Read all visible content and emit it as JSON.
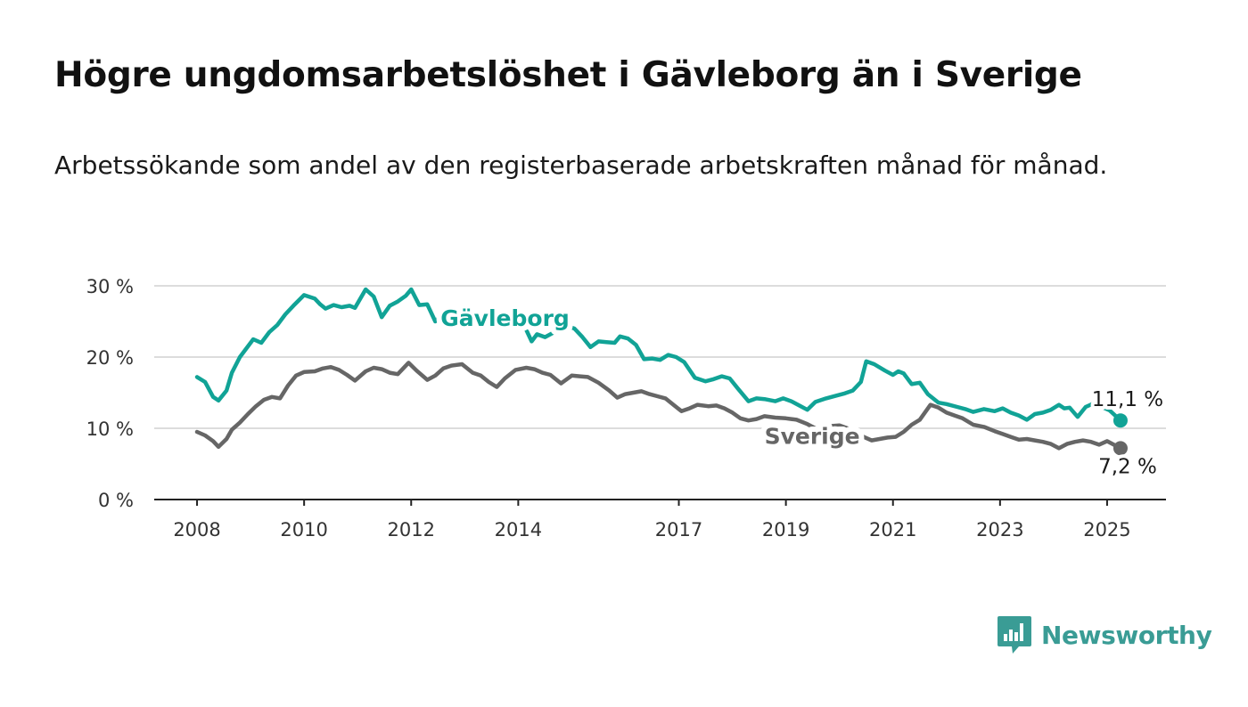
{
  "header": {
    "title": "Högre ungdomsarbetslöshet i Gävleborg än i Sverige",
    "subtitle": "Arbetssökande som andel av den registerbaserade arbetskraften månad för månad."
  },
  "branding": {
    "name": "Newsworthy",
    "icon": "bar-chart-speech-bubble-icon",
    "color": "#3a9c95"
  },
  "chart_data": {
    "type": "line",
    "title": "Högre ungdomsarbetslöshet i Gävleborg än i Sverige",
    "xlabel": "",
    "ylabel": "",
    "ylim": [
      0,
      30
    ],
    "xlim": [
      2007.2,
      2026.1
    ],
    "y_ticks": [
      {
        "value": 0,
        "label": "0 %"
      },
      {
        "value": 10,
        "label": "10 %"
      },
      {
        "value": 20,
        "label": "20 %"
      },
      {
        "value": 30,
        "label": "30 %"
      }
    ],
    "x_ticks": [
      {
        "value": 2008,
        "label": "2008"
      },
      {
        "value": 2010,
        "label": "2010"
      },
      {
        "value": 2012,
        "label": "2012"
      },
      {
        "value": 2014,
        "label": "2014"
      },
      {
        "value": 2017,
        "label": "2017"
      },
      {
        "value": 2019,
        "label": "2019"
      },
      {
        "value": 2021,
        "label": "2021"
      },
      {
        "value": 2023,
        "label": "2023"
      },
      {
        "value": 2025,
        "label": "2025"
      }
    ],
    "grid": true,
    "series": [
      {
        "name": "Gävleborg",
        "color": "#11a396",
        "end_label": "11,1 %",
        "x": [
          2008.0,
          2008.15,
          2008.3,
          2008.4,
          2008.55,
          2008.65,
          2008.8,
          2008.9,
          2009.05,
          2009.2,
          2009.35,
          2009.5,
          2009.65,
          2009.8,
          2010.0,
          2010.2,
          2010.3,
          2010.4,
          2010.55,
          2010.7,
          2010.85,
          2010.95,
          2011.15,
          2011.3,
          2011.45,
          2011.6,
          2011.75,
          2011.9,
          2012.0,
          2012.15,
          2012.3,
          2012.45,
          2012.6,
          2012.8,
          2013.0,
          2013.2,
          2013.45,
          2013.6,
          2013.75,
          2013.9,
          2014.1,
          2014.25,
          2014.35,
          2014.5,
          2014.7,
          2014.9,
          2015.05,
          2015.2,
          2015.35,
          2015.5,
          2015.65,
          2015.8,
          2015.9,
          2016.05,
          2016.2,
          2016.35,
          2016.5,
          2016.65,
          2016.8,
          2016.95,
          2017.1,
          2017.3,
          2017.5,
          2017.65,
          2017.8,
          2017.95,
          2018.1,
          2018.3,
          2018.45,
          2018.6,
          2018.8,
          2018.95,
          2019.1,
          2019.25,
          2019.4,
          2019.55,
          2019.75,
          2019.95,
          2020.1,
          2020.25,
          2020.4,
          2020.5,
          2020.65,
          2020.85,
          2021.0,
          2021.1,
          2021.2,
          2021.35,
          2021.5,
          2021.65,
          2021.85,
          2022.0,
          2022.2,
          2022.35,
          2022.5,
          2022.7,
          2022.9,
          2023.05,
          2023.2,
          2023.35,
          2023.5,
          2023.65,
          2023.8,
          2023.95,
          2024.1,
          2024.2,
          2024.3,
          2024.45,
          2024.6,
          2024.75,
          2024.9,
          2025.05,
          2025.25
        ],
        "y": [
          17.2,
          16.5,
          14.4,
          13.9,
          15.3,
          17.8,
          20.0,
          21.0,
          22.5,
          22.0,
          23.5,
          24.5,
          26.0,
          27.2,
          28.7,
          28.2,
          27.4,
          26.8,
          27.3,
          27.0,
          27.2,
          26.9,
          29.5,
          28.5,
          25.6,
          27.2,
          27.8,
          28.6,
          29.5,
          27.3,
          27.4,
          25.0,
          26.2,
          26.0,
          25.8,
          25.3,
          24.3,
          25.8,
          25.3,
          25.0,
          24.6,
          22.2,
          23.2,
          22.8,
          23.6,
          24.4,
          24.0,
          22.8,
          21.4,
          22.2,
          22.1,
          22.0,
          22.9,
          22.6,
          21.7,
          19.7,
          19.8,
          19.6,
          20.3,
          20.0,
          19.3,
          17.1,
          16.6,
          16.9,
          17.3,
          17.0,
          15.6,
          13.8,
          14.2,
          14.1,
          13.8,
          14.2,
          13.8,
          13.2,
          12.6,
          13.7,
          14.2,
          14.6,
          14.9,
          15.3,
          16.5,
          19.4,
          19.0,
          18.1,
          17.5,
          18.0,
          17.7,
          16.2,
          16.4,
          14.8,
          13.6,
          13.4,
          13.0,
          12.7,
          12.3,
          12.7,
          12.4,
          12.8,
          12.2,
          11.8,
          11.2,
          12.0,
          12.2,
          12.6,
          13.3,
          12.8,
          12.9,
          11.6,
          13.0,
          13.5,
          13.0,
          12.5,
          11.1
        ]
      },
      {
        "name": "Sverige",
        "color": "#666666",
        "end_label": "7,2 %",
        "x": [
          2008.0,
          2008.15,
          2008.3,
          2008.4,
          2008.55,
          2008.65,
          2008.8,
          2008.95,
          2009.1,
          2009.25,
          2009.4,
          2009.55,
          2009.7,
          2009.85,
          2010.0,
          2010.2,
          2010.35,
          2010.5,
          2010.65,
          2010.8,
          2010.95,
          2011.15,
          2011.3,
          2011.45,
          2011.6,
          2011.75,
          2011.95,
          2012.1,
          2012.3,
          2012.45,
          2012.6,
          2012.75,
          2012.95,
          2013.15,
          2013.3,
          2013.45,
          2013.6,
          2013.75,
          2013.95,
          2014.15,
          2014.3,
          2014.45,
          2014.6,
          2014.8,
          2015.0,
          2015.15,
          2015.3,
          2015.5,
          2015.7,
          2015.85,
          2016.0,
          2016.15,
          2016.3,
          2016.45,
          2016.6,
          2016.75,
          2016.9,
          2017.05,
          2017.2,
          2017.35,
          2017.55,
          2017.7,
          2017.85,
          2018.0,
          2018.15,
          2018.3,
          2018.45,
          2018.6,
          2018.8,
          2019.0,
          2019.2,
          2019.4,
          2019.6,
          2019.8,
          2020.0,
          2020.15,
          2020.3,
          2020.45,
          2020.6,
          2020.75,
          2020.9,
          2021.05,
          2021.2,
          2021.35,
          2021.5,
          2021.7,
          2021.85,
          2022.0,
          2022.15,
          2022.3,
          2022.5,
          2022.7,
          2022.9,
          2023.05,
          2023.2,
          2023.35,
          2023.5,
          2023.65,
          2023.8,
          2023.95,
          2024.1,
          2024.25,
          2024.4,
          2024.55,
          2024.7,
          2024.85,
          2025.0,
          2025.25
        ],
        "y": [
          9.5,
          9.0,
          8.2,
          7.4,
          8.5,
          9.8,
          10.8,
          12.0,
          13.1,
          14.0,
          14.4,
          14.2,
          16.0,
          17.4,
          17.9,
          18.0,
          18.4,
          18.6,
          18.2,
          17.5,
          16.7,
          18.0,
          18.5,
          18.3,
          17.8,
          17.6,
          19.2,
          18.1,
          16.8,
          17.4,
          18.4,
          18.8,
          19.0,
          17.8,
          17.4,
          16.5,
          15.8,
          17.0,
          18.2,
          18.5,
          18.3,
          17.8,
          17.5,
          16.3,
          17.4,
          17.3,
          17.2,
          16.4,
          15.3,
          14.3,
          14.8,
          15.0,
          15.2,
          14.8,
          14.5,
          14.2,
          13.3,
          12.4,
          12.8,
          13.3,
          13.1,
          13.2,
          12.8,
          12.2,
          11.4,
          11.1,
          11.3,
          11.7,
          11.5,
          11.4,
          11.2,
          10.6,
          9.8,
          10.3,
          10.4,
          10.0,
          9.4,
          8.8,
          8.3,
          8.5,
          8.7,
          8.8,
          9.5,
          10.5,
          11.2,
          13.3,
          12.9,
          12.2,
          11.8,
          11.4,
          10.5,
          10.2,
          9.6,
          9.2,
          8.8,
          8.4,
          8.5,
          8.3,
          8.1,
          7.8,
          7.2,
          7.8,
          8.1,
          8.3,
          8.1,
          7.7,
          8.2,
          7.2
        ]
      }
    ]
  }
}
